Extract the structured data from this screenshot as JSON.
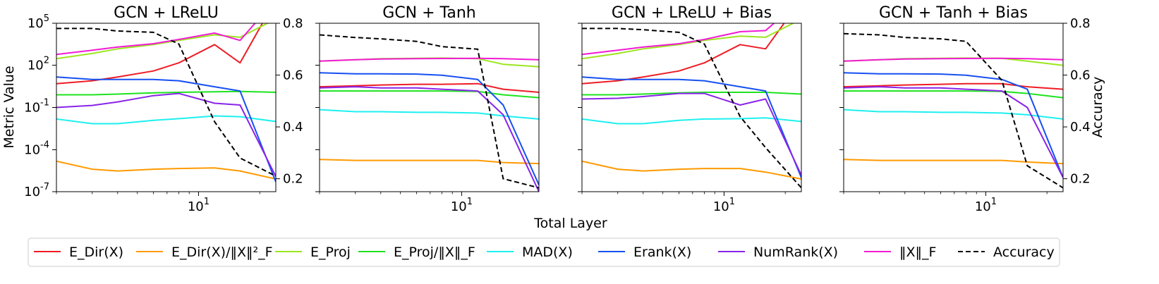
{
  "figure": {
    "shared_xlabel": "Total Layer",
    "left_ylabel": "Metric Value",
    "right_ylabel": "Accuracy"
  },
  "legend": [
    {
      "label": "E_Dir(X)",
      "color": "#ee1c25",
      "dash": false
    },
    {
      "label": "E_Dir(X)/‖X‖²_F",
      "color": "#ff9a00",
      "dash": false
    },
    {
      "label": "E_Proj",
      "color": "#9be61e",
      "dash": false
    },
    {
      "label": "E_Proj/‖X‖_F",
      "color": "#1ee31e",
      "dash": false
    },
    {
      "label": "MAD(X)",
      "color": "#1ef0f0",
      "dash": false
    },
    {
      "label": "Erank(X)",
      "color": "#1650f2",
      "dash": false
    },
    {
      "label": "NumRank(X)",
      "color": "#8a24ea",
      "dash": false
    },
    {
      "label": "‖X‖_F",
      "color": "#f21ad4",
      "dash": false
    },
    {
      "label": "Accuracy",
      "color": "#000000",
      "dash": true
    }
  ],
  "chart_data": [
    {
      "type": "line",
      "title": "GCN + LReLU",
      "xlabel": "",
      "ylabel": "Metric Value",
      "xscale": "log",
      "yscale": "log",
      "xlim": [
        2,
        24
      ],
      "ylim": [
        1e-07,
        100000
      ],
      "ytick_labels": [
        "10^-7",
        "10^-4",
        "10^-1",
        "10^2",
        "10^5"
      ],
      "xtick_labels": [
        "10^1"
      ],
      "right_ylim": [
        0.15,
        0.8
      ],
      "right_ytick_labels": [
        "0.2",
        "0.4",
        "0.6",
        "0.8"
      ],
      "x": [
        2,
        3,
        4,
        6,
        8,
        12,
        16,
        24
      ],
      "series": [
        {
          "name": "E_Dir(X)",
          "values": [
            5,
            8,
            15,
            40,
            150,
            3000,
            150,
            5000000
          ]
        },
        {
          "name": "E_Dir(X)/‖X‖²_F",
          "values": [
            1.5e-05,
            4e-06,
            3e-06,
            4e-06,
            4.5e-06,
            5e-06,
            3e-06,
            8e-07
          ]
        },
        {
          "name": "E_Proj",
          "values": [
            300,
            700,
            1500,
            3000,
            6000,
            15000,
            10000,
            200000
          ]
        },
        {
          "name": "E_Proj/‖X‖_F",
          "values": [
            0.8,
            0.8,
            0.9,
            1.1,
            1.2,
            1.3,
            1.4,
            1.2
          ]
        },
        {
          "name": "MAD(X)",
          "values": [
            0.015,
            0.007,
            0.007,
            0.012,
            0.016,
            0.025,
            0.022,
            0.01
          ]
        },
        {
          "name": "Erank(X)",
          "values": [
            15,
            10,
            10,
            10,
            8,
            3,
            1.5,
            5e-07
          ]
        },
        {
          "name": "NumRank(X)",
          "values": [
            0.1,
            0.14,
            0.25,
            0.7,
            1,
            0.2,
            0.15,
            1.2e-06
          ]
        },
        {
          "name": "‖X‖_F",
          "values": [
            600,
            1200,
            2000,
            3500,
            7000,
            20000,
            6000,
            5000000
          ]
        }
      ],
      "accuracy": [
        0.78,
        0.78,
        0.77,
        0.765,
        0.72,
        0.42,
        0.28,
        0.21
      ]
    },
    {
      "type": "line",
      "title": "GCN + Tanh",
      "xlabel": "",
      "ylabel": "",
      "xscale": "log",
      "yscale": "log",
      "xlim": [
        2,
        24
      ],
      "ylim": [
        1e-07,
        100000
      ],
      "xtick_labels": [
        "10^1"
      ],
      "right_ylim": [
        0.15,
        0.8
      ],
      "x": [
        2,
        3,
        4,
        6,
        8,
        12,
        16,
        24
      ],
      "series": [
        {
          "name": "E_Dir(X)",
          "values": [
            3,
            3.5,
            4,
            4.5,
            4.5,
            5,
            2,
            1.2
          ]
        },
        {
          "name": "E_Dir(X)/‖X‖²_F",
          "values": [
            2e-05,
            1.7e-05,
            1.7e-05,
            1.7e-05,
            1.7e-05,
            1.7e-05,
            1.2e-05,
            1e-05
          ]
        },
        {
          "name": "E_Proj",
          "values": [
            200,
            250,
            300,
            320,
            330,
            300,
            120,
            80
          ]
        },
        {
          "name": "E_Proj/‖X‖_F",
          "values": [
            1.5,
            1.5,
            1.5,
            1.5,
            1.5,
            1.4,
            0.8,
            0.5
          ]
        },
        {
          "name": "MAD(X)",
          "values": [
            0.07,
            0.05,
            0.05,
            0.045,
            0.045,
            0.04,
            0.025,
            0.015
          ]
        },
        {
          "name": "Erank(X)",
          "values": [
            30,
            25,
            25,
            24,
            20,
            10,
            0.15,
            3e-07
          ]
        },
        {
          "name": "NumRank(X)",
          "values": [
            2.5,
            3,
            2.5,
            2.5,
            2,
            1.5,
            0.03,
            1e-07
          ]
        },
        {
          "name": "‖X‖_F",
          "values": [
            200,
            250,
            280,
            300,
            310,
            320,
            300,
            250
          ]
        }
      ],
      "accuracy": [
        0.755,
        0.745,
        0.74,
        0.73,
        0.71,
        0.7,
        0.2,
        0.165
      ]
    },
    {
      "type": "line",
      "title": "GCN + LReLU + Bias",
      "xlabel": "",
      "ylabel": "",
      "xscale": "log",
      "yscale": "log",
      "xlim": [
        2,
        24
      ],
      "ylim": [
        1e-07,
        100000
      ],
      "xtick_labels": [
        "10^1"
      ],
      "right_ylim": [
        0.15,
        0.8
      ],
      "x": [
        2,
        3,
        4,
        6,
        8,
        12,
        16,
        24
      ],
      "series": [
        {
          "name": "E_Dir(X)",
          "values": [
            5,
            8,
            15,
            40,
            150,
            3000,
            1500,
            5000000
          ]
        },
        {
          "name": "E_Dir(X)/‖X‖²_F",
          "values": [
            1.5e-05,
            4e-06,
            3e-06,
            4e-06,
            4.5e-06,
            4.5e-06,
            2.5e-06,
            8e-07
          ]
        },
        {
          "name": "E_Proj",
          "values": [
            300,
            700,
            1500,
            3000,
            6000,
            12000,
            10000,
            200000
          ]
        },
        {
          "name": "E_Proj/‖X‖_F",
          "values": [
            0.8,
            0.8,
            0.9,
            1.1,
            1.2,
            1.2,
            1.2,
            0.9
          ]
        },
        {
          "name": "MAD(X)",
          "values": [
            0.015,
            0.007,
            0.007,
            0.012,
            0.015,
            0.016,
            0.018,
            0.01
          ]
        },
        {
          "name": "Erank(X)",
          "values": [
            15,
            10,
            10,
            10,
            8,
            3,
            1.5,
            1e-06
          ]
        },
        {
          "name": "NumRank(X)",
          "values": [
            0.4,
            0.45,
            0.6,
            1,
            1,
            0.15,
            0.4,
            1.5e-06
          ]
        },
        {
          "name": "‖X‖_F",
          "values": [
            600,
            1200,
            2000,
            3500,
            7000,
            25000,
            30000,
            5000000
          ]
        }
      ],
      "accuracy": [
        0.78,
        0.78,
        0.775,
        0.765,
        0.72,
        0.44,
        0.32,
        0.165
      ]
    },
    {
      "type": "line",
      "title": "GCN + Tanh + Bias",
      "xlabel": "",
      "ylabel": "",
      "xscale": "log",
      "yscale": "log",
      "xlim": [
        2,
        24
      ],
      "ylim": [
        1e-07,
        100000
      ],
      "xtick_labels": [
        "10^1"
      ],
      "right_ylim": [
        0.15,
        0.8
      ],
      "right_ytick_labels": [
        "0.2",
        "0.4",
        "0.6",
        "0.8"
      ],
      "x": [
        2,
        3,
        4,
        6,
        8,
        12,
        16,
        24
      ],
      "series": [
        {
          "name": "E_Dir(X)",
          "values": [
            3,
            3.5,
            4,
            4.5,
            5,
            5,
            3,
            2
          ]
        },
        {
          "name": "E_Dir(X)/‖X‖²_F",
          "values": [
            2e-05,
            1.7e-05,
            1.7e-05,
            1.7e-05,
            1.7e-05,
            1.7e-05,
            1.3e-05,
            1e-05
          ]
        },
        {
          "name": "E_Proj",
          "values": [
            200,
            250,
            300,
            320,
            330,
            320,
            200,
            100
          ]
        },
        {
          "name": "E_Proj/‖X‖_F",
          "values": [
            1.5,
            1.5,
            1.5,
            1.5,
            1.5,
            1.4,
            1,
            0.5
          ]
        },
        {
          "name": "MAD(X)",
          "values": [
            0.07,
            0.05,
            0.05,
            0.045,
            0.045,
            0.04,
            0.03,
            0.015
          ]
        },
        {
          "name": "Erank(X)",
          "values": [
            30,
            25,
            25,
            24,
            20,
            10,
            2,
            1e-06
          ]
        },
        {
          "name": "NumRank(X)",
          "values": [
            2.5,
            3,
            2.5,
            2.5,
            2,
            1.5,
            0.1,
            1e-06
          ]
        },
        {
          "name": "‖X‖_F",
          "values": [
            200,
            250,
            280,
            300,
            310,
            320,
            300,
            250
          ]
        }
      ],
      "accuracy": [
        0.76,
        0.755,
        0.745,
        0.74,
        0.73,
        0.58,
        0.25,
        0.165
      ]
    }
  ]
}
